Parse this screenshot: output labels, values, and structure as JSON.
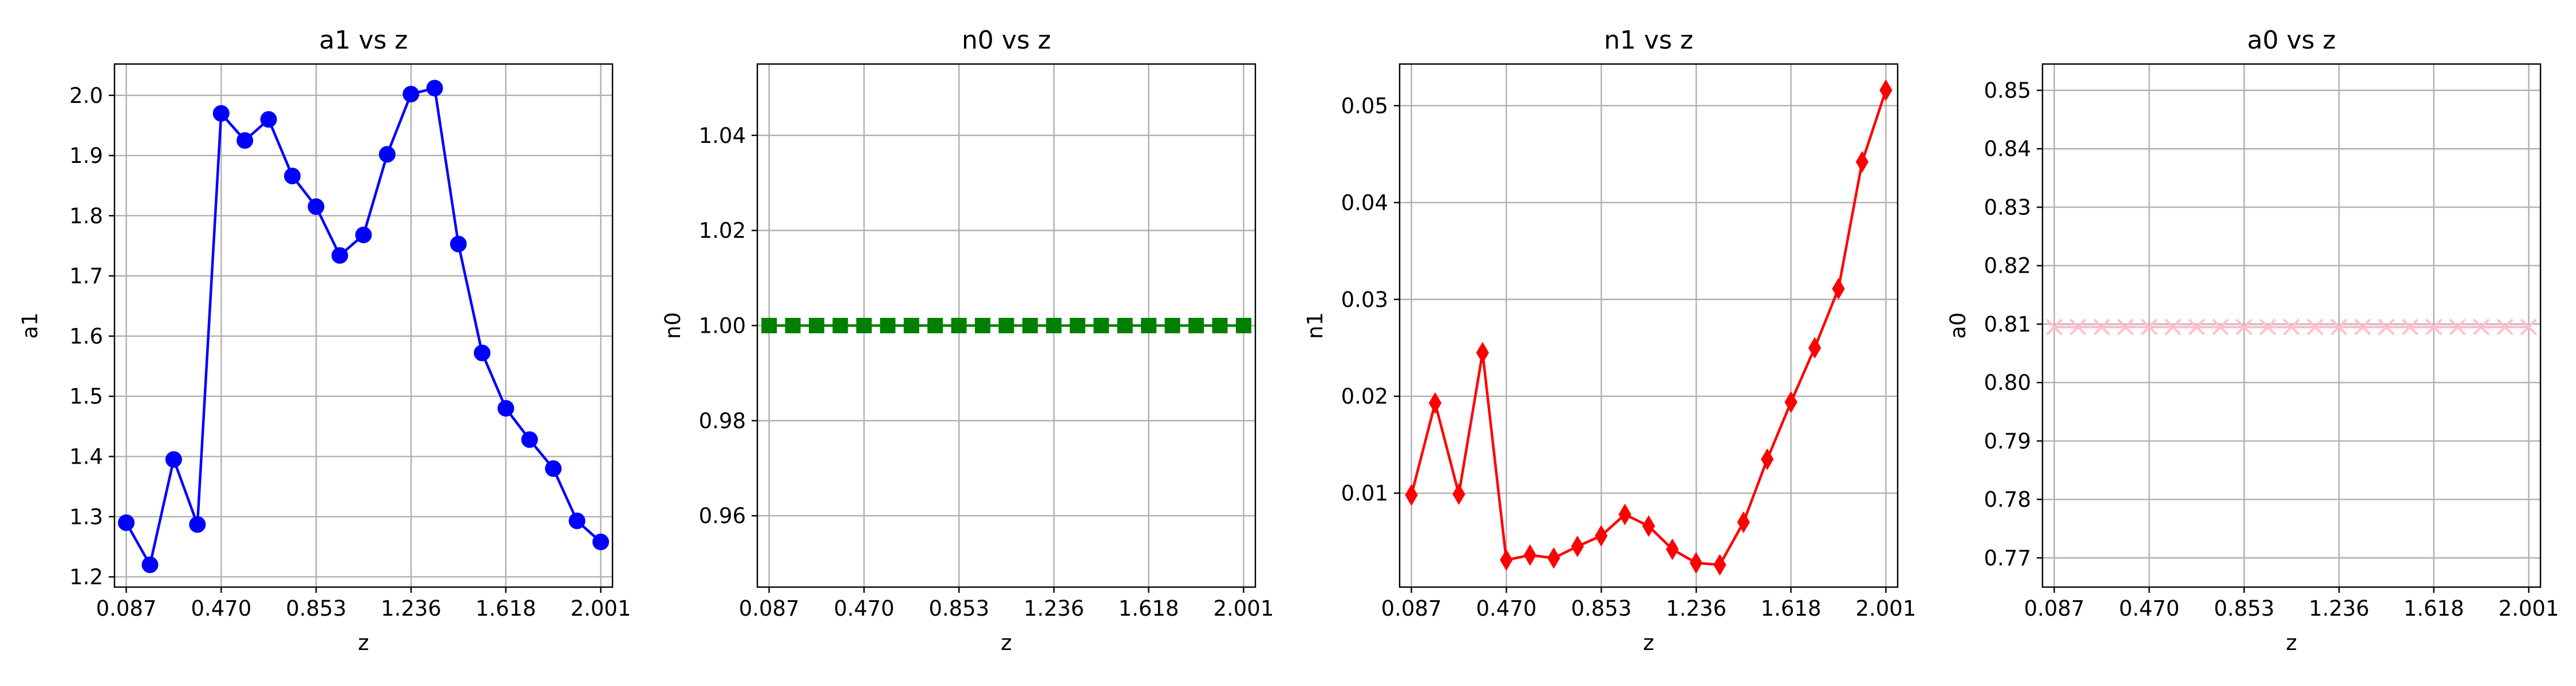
{
  "chart_data": [
    {
      "type": "line",
      "title": "a1 vs z",
      "xlabel": "z",
      "ylabel": "a1",
      "xlim": [
        0.0395,
        2.0485
      ],
      "ylim": [
        1.183,
        2.052
      ],
      "xticks": [
        0.087,
        0.47,
        0.853,
        1.236,
        1.618,
        2.001
      ],
      "xtick_labels": [
        "0.087",
        "0.470",
        "0.853",
        "1.236",
        "1.618",
        "2.001"
      ],
      "yticks": [
        1.2,
        1.3,
        1.4,
        1.5,
        1.6,
        1.7,
        1.8,
        1.9,
        2.0
      ],
      "ytick_labels": [
        "1.2",
        "1.3",
        "1.4",
        "1.5",
        "1.6",
        "1.7",
        "1.8",
        "1.9",
        "2.0"
      ],
      "grid": true,
      "color": "#0000ff",
      "marker": "circle",
      "series": [
        {
          "x": [
            0.087,
            0.1827,
            0.2784,
            0.3741,
            0.4698,
            0.5655,
            0.6612,
            0.7569,
            0.8526,
            0.9483,
            1.044,
            1.1397,
            1.2354,
            1.3311,
            1.4268,
            1.5225,
            1.6182,
            1.7139,
            1.8096,
            1.9053,
            2.001
          ],
          "y": [
            1.29,
            1.22,
            1.395,
            1.287,
            1.97,
            1.925,
            1.96,
            1.866,
            1.815,
            1.734,
            1.768,
            1.902,
            2.002,
            2.012,
            1.753,
            1.572,
            1.48,
            1.428,
            1.38,
            1.293,
            1.258
          ]
        }
      ]
    },
    {
      "type": "line",
      "title": "n0 vs z",
      "xlabel": "z",
      "ylabel": "n0",
      "xlim": [
        0.0395,
        2.0485
      ],
      "ylim": [
        0.945,
        1.055
      ],
      "xticks": [
        0.087,
        0.47,
        0.853,
        1.236,
        1.618,
        2.001
      ],
      "xtick_labels": [
        "0.087",
        "0.470",
        "0.853",
        "1.236",
        "1.618",
        "2.001"
      ],
      "yticks": [
        0.96,
        0.98,
        1.0,
        1.02,
        1.04
      ],
      "ytick_labels": [
        "0.96",
        "0.98",
        "1.00",
        "1.02",
        "1.04"
      ],
      "grid": true,
      "color": "#008000",
      "marker": "square",
      "series": [
        {
          "x": [
            0.087,
            0.1827,
            0.2784,
            0.3741,
            0.4698,
            0.5655,
            0.6612,
            0.7569,
            0.8526,
            0.9483,
            1.044,
            1.1397,
            1.2354,
            1.3311,
            1.4268,
            1.5225,
            1.6182,
            1.7139,
            1.8096,
            1.9053,
            2.001
          ],
          "y": [
            1.0,
            1.0,
            1.0,
            1.0,
            1.0,
            1.0,
            1.0,
            1.0,
            1.0,
            1.0,
            1.0,
            1.0,
            1.0,
            1.0,
            1.0,
            1.0,
            1.0,
            1.0,
            1.0,
            1.0,
            1.0
          ]
        }
      ]
    },
    {
      "type": "line",
      "title": "n1 vs z",
      "xlabel": "z",
      "ylabel": "n1",
      "xlim": [
        0.0395,
        2.0485
      ],
      "ylim": [
        0.0003,
        0.0543
      ],
      "xticks": [
        0.087,
        0.47,
        0.853,
        1.236,
        1.618,
        2.001
      ],
      "xtick_labels": [
        "0.087",
        "0.470",
        "0.853",
        "1.236",
        "1.618",
        "2.001"
      ],
      "yticks": [
        0.01,
        0.02,
        0.03,
        0.04,
        0.05
      ],
      "ytick_labels": [
        "0.01",
        "0.02",
        "0.03",
        "0.04",
        "0.05"
      ],
      "grid": true,
      "color": "#ff0000",
      "marker": "diamond",
      "series": [
        {
          "x": [
            0.087,
            0.1827,
            0.2784,
            0.3741,
            0.4698,
            0.5655,
            0.6612,
            0.7569,
            0.8526,
            0.9483,
            1.044,
            1.1397,
            1.2354,
            1.3311,
            1.4268,
            1.5225,
            1.6182,
            1.7139,
            1.8096,
            1.9053,
            2.001
          ],
          "y": [
            0.0098,
            0.0193,
            0.0099,
            0.0245,
            0.0031,
            0.0036,
            0.0033,
            0.0045,
            0.0056,
            0.0078,
            0.0066,
            0.0042,
            0.0028,
            0.0026,
            0.007,
            0.0135,
            0.0194,
            0.025,
            0.0311,
            0.0442,
            0.0516
          ]
        }
      ]
    },
    {
      "type": "line",
      "title": "a0 vs z",
      "xlabel": "z",
      "ylabel": "a0",
      "xlim": [
        0.0395,
        2.0485
      ],
      "ylim": [
        0.765,
        0.8545
      ],
      "xticks": [
        0.087,
        0.47,
        0.853,
        1.236,
        1.618,
        2.001
      ],
      "xtick_labels": [
        "0.087",
        "0.470",
        "0.853",
        "1.236",
        "1.618",
        "2.001"
      ],
      "yticks": [
        0.77,
        0.78,
        0.79,
        0.8,
        0.81,
        0.82,
        0.83,
        0.84,
        0.85
      ],
      "ytick_labels": [
        "0.77",
        "0.78",
        "0.79",
        "0.80",
        "0.81",
        "0.82",
        "0.83",
        "0.84",
        "0.85"
      ],
      "grid": true,
      "color": "#ffc0cb",
      "marker": "x",
      "series": [
        {
          "x": [
            0.087,
            0.1827,
            0.2784,
            0.3741,
            0.4698,
            0.5655,
            0.6612,
            0.7569,
            0.8526,
            0.9483,
            1.044,
            1.1397,
            1.2354,
            1.3311,
            1.4268,
            1.5225,
            1.6182,
            1.7139,
            1.8096,
            1.9053,
            2.001
          ],
          "y": [
            0.8095,
            0.8095,
            0.8095,
            0.8095,
            0.8095,
            0.8095,
            0.8095,
            0.8095,
            0.8095,
            0.8095,
            0.8095,
            0.8095,
            0.8095,
            0.8095,
            0.8095,
            0.8095,
            0.8095,
            0.8095,
            0.8095,
            0.8095,
            0.8095
          ]
        }
      ]
    }
  ]
}
